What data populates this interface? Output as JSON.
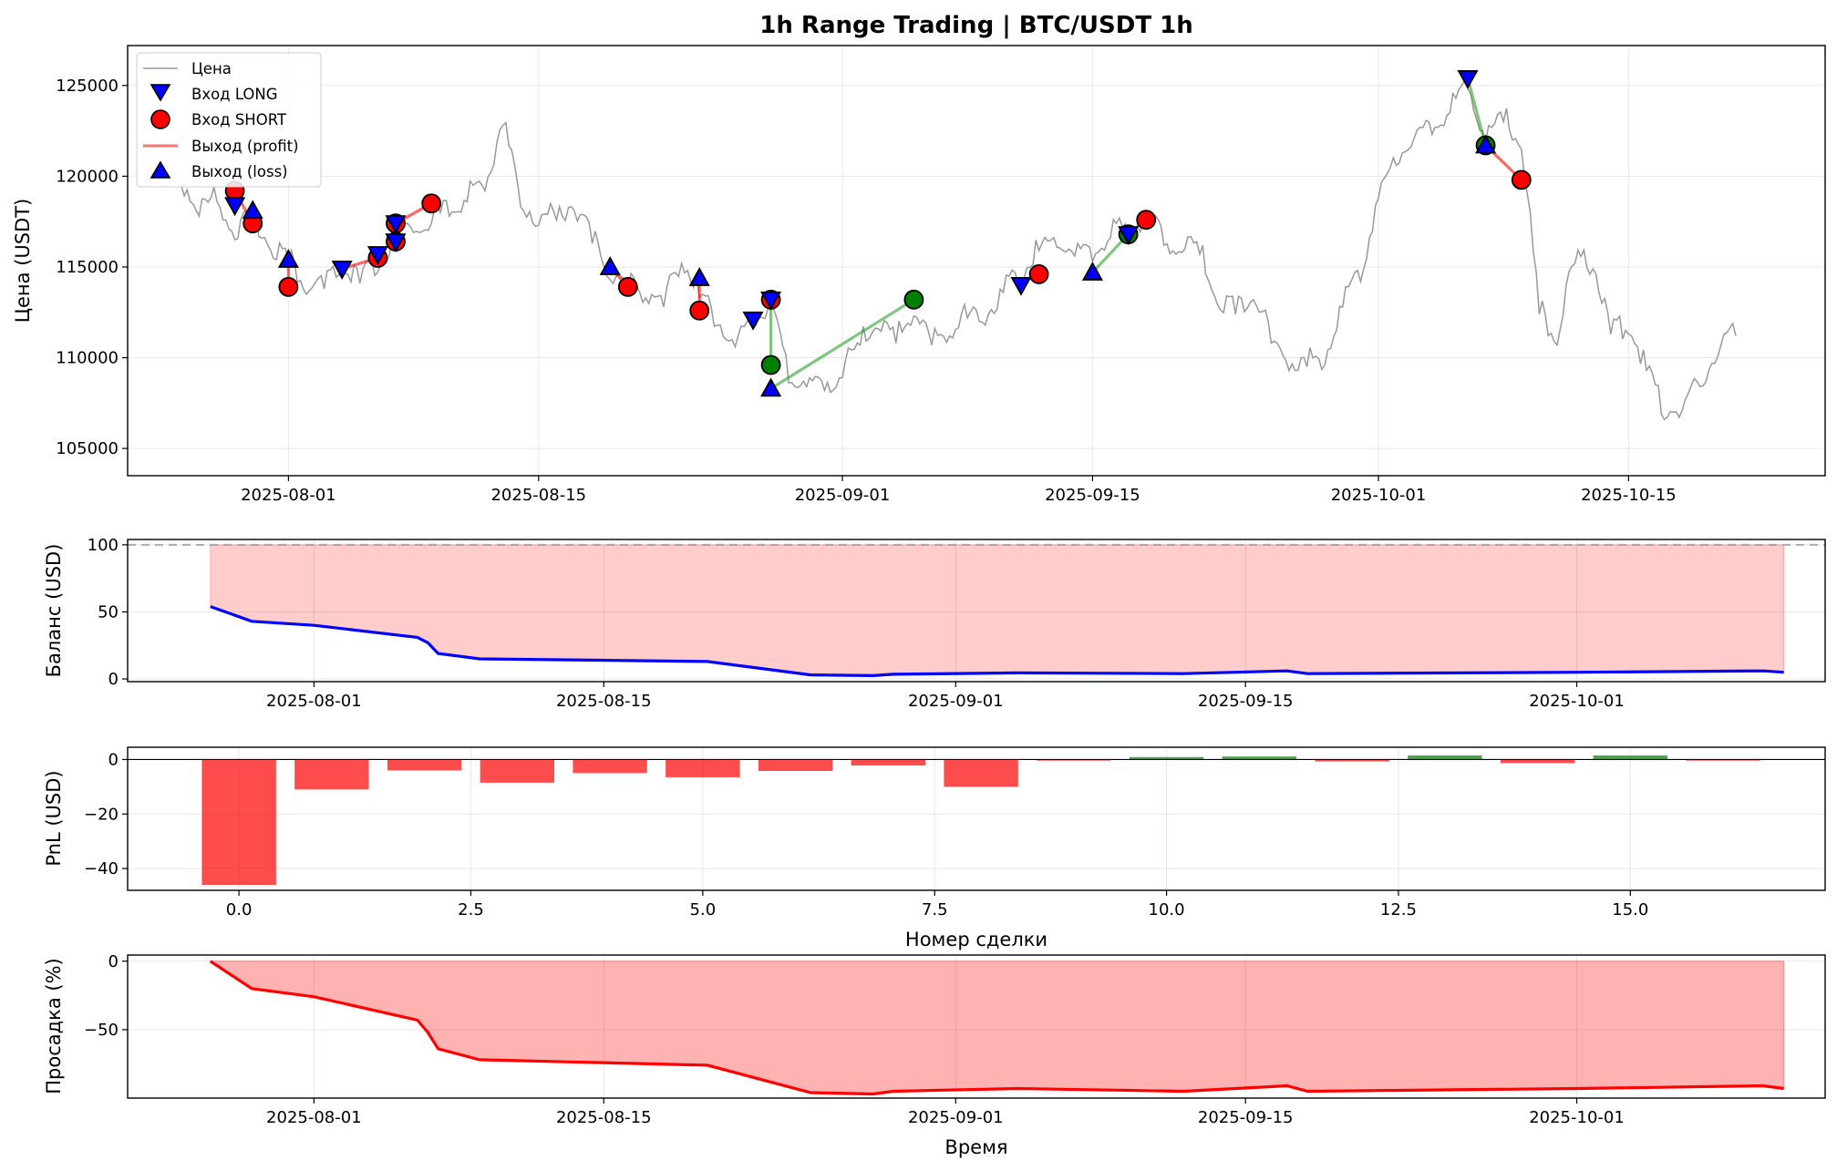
{
  "chart_data": [
    {
      "id": "price",
      "type": "line",
      "title": "1h Range Trading | BTC/USDT 1h",
      "xlabel": "",
      "ylabel": "Цена (USDT)",
      "xlim": [
        "2025-07-23",
        "2025-10-26"
      ],
      "ylim": [
        103500,
        127200
      ],
      "xticks": [
        "2025-08-01",
        "2025-08-15",
        "2025-09-01",
        "2025-09-15",
        "2025-10-01",
        "2025-10-15"
      ],
      "yticks": [
        105000,
        110000,
        115000,
        120000,
        125000
      ],
      "grid": true,
      "legend": {
        "placement": "top-left",
        "entries": [
          "Цена",
          "Вход LONG",
          "Вход SHORT",
          "Выход (profit)",
          "Выход (loss)"
        ]
      },
      "colors": {
        "price": "#999999",
        "long": "#0000ff",
        "short": "#ff0000",
        "profit_exit": "#008000",
        "loss_line": "#ff0000",
        "profit_line": "#2ca02c"
      },
      "price_series": {
        "name": "Цена",
        "x": [
          "2025-07-26",
          "2025-07-27",
          "2025-07-28",
          "2025-07-29",
          "2025-07-30",
          "2025-07-31",
          "2025-08-01",
          "2025-08-02",
          "2025-08-03",
          "2025-08-04",
          "2025-08-05",
          "2025-08-06",
          "2025-08-07",
          "2025-08-08",
          "2025-08-09",
          "2025-08-10",
          "2025-08-11",
          "2025-08-12",
          "2025-08-13",
          "2025-08-14",
          "2025-08-15",
          "2025-08-16",
          "2025-08-17",
          "2025-08-18",
          "2025-08-19",
          "2025-08-20",
          "2025-08-21",
          "2025-08-22",
          "2025-08-23",
          "2025-08-24",
          "2025-08-25",
          "2025-08-26",
          "2025-08-27",
          "2025-08-28",
          "2025-08-29",
          "2025-08-30",
          "2025-08-31",
          "2025-09-01",
          "2025-09-02",
          "2025-09-03",
          "2025-09-04",
          "2025-09-05",
          "2025-09-06",
          "2025-09-07",
          "2025-09-08",
          "2025-09-09",
          "2025-09-10",
          "2025-09-11",
          "2025-09-12",
          "2025-09-13",
          "2025-09-14",
          "2025-09-15",
          "2025-09-16",
          "2025-09-17",
          "2025-09-18",
          "2025-09-19",
          "2025-09-20",
          "2025-09-21",
          "2025-09-22",
          "2025-09-23",
          "2025-09-24",
          "2025-09-25",
          "2025-09-26",
          "2025-09-27",
          "2025-09-28",
          "2025-09-29",
          "2025-09-30",
          "2025-10-01",
          "2025-10-02",
          "2025-10-03",
          "2025-10-04",
          "2025-10-05",
          "2025-10-06",
          "2025-10-07",
          "2025-10-08",
          "2025-10-09",
          "2025-10-10",
          "2025-10-11",
          "2025-10-12",
          "2025-10-13",
          "2025-10-14",
          "2025-10-15",
          "2025-10-16",
          "2025-10-17",
          "2025-10-18",
          "2025-10-19",
          "2025-10-20",
          "2025-10-21"
        ],
        "y": [
          119500,
          117800,
          118600,
          116500,
          117600,
          115900,
          115300,
          113500,
          113800,
          114400,
          114100,
          114700,
          116200,
          116900,
          117400,
          117800,
          118600,
          119200,
          122800,
          118300,
          117300,
          117600,
          118100,
          116300,
          114300,
          113800,
          113300,
          112800,
          115200,
          113300,
          111800,
          110600,
          111600,
          112800,
          108600,
          108400,
          108200,
          108900,
          110700,
          111600,
          110800,
          112300,
          110700,
          111200,
          112200,
          111800,
          113600,
          114400,
          115900,
          116100,
          115600,
          115300,
          116600,
          116900,
          117400,
          116200,
          115800,
          115700,
          112900,
          112400,
          113200,
          110800,
          109300,
          109500,
          109600,
          112800,
          114200,
          118800,
          120600,
          122100,
          122300,
          123500,
          124800,
          121900,
          123000,
          121500,
          112400,
          110700,
          115200,
          114900,
          111300,
          111300,
          109300,
          106600,
          107100,
          108400,
          110100,
          111200
        ]
      },
      "long_entries": {
        "x": [
          "2025-07-29",
          "2025-08-04",
          "2025-08-06",
          "2025-08-07",
          "2025-08-07",
          "2025-08-27",
          "2025-08-28",
          "2025-09-11",
          "2025-09-17",
          "2025-10-06"
        ],
        "y": [
          118400,
          114900,
          115700,
          116400,
          117400,
          112100,
          113200,
          114000,
          116800,
          125400
        ]
      },
      "short_entries": {
        "x": [
          "2025-07-29",
          "2025-07-30",
          "2025-08-01",
          "2025-08-06",
          "2025-08-07",
          "2025-08-07",
          "2025-08-09",
          "2025-08-20",
          "2025-08-24",
          "2025-08-28"
        ],
        "y": [
          119200,
          117400,
          113900,
          115500,
          116400,
          117400,
          118500,
          113900,
          112600,
          113200
        ]
      },
      "profit_exits": {
        "x": [
          "2025-08-28",
          "2025-09-05",
          "2025-09-17",
          "2025-10-07"
        ],
        "y": [
          109600,
          113200,
          116800,
          121700
        ]
      },
      "loss_exits": {
        "x": [
          "2025-07-30",
          "2025-08-01",
          "2025-08-19",
          "2025-08-24",
          "2025-08-28",
          "2025-09-15",
          "2025-10-07"
        ],
        "y": [
          118100,
          115400,
          115000,
          114400,
          108300,
          114700,
          121700
        ]
      },
      "short_only_exits": {
        "x": [
          "2025-09-12",
          "2025-09-18",
          "2025-10-09"
        ],
        "y": [
          114600,
          117600,
          119800
        ]
      },
      "trade_lines": [
        {
          "x": [
            "2025-07-29",
            "2025-07-30"
          ],
          "y": [
            119200,
            117400
          ],
          "result": "loss"
        },
        {
          "x": [
            "2025-08-01",
            "2025-08-01"
          ],
          "y": [
            115400,
            113900
          ],
          "result": "loss"
        },
        {
          "x": [
            "2025-08-04",
            "2025-08-06"
          ],
          "y": [
            114900,
            115500
          ],
          "result": "loss"
        },
        {
          "x": [
            "2025-08-07",
            "2025-08-09"
          ],
          "y": [
            117400,
            118500
          ],
          "result": "loss"
        },
        {
          "x": [
            "2025-08-19",
            "2025-08-20"
          ],
          "y": [
            115000,
            113900
          ],
          "result": "loss"
        },
        {
          "x": [
            "2025-08-24",
            "2025-08-24"
          ],
          "y": [
            114400,
            112600
          ],
          "result": "loss"
        },
        {
          "x": [
            "2025-08-28",
            "2025-08-28"
          ],
          "y": [
            113200,
            109600
          ],
          "result": "profit"
        },
        {
          "x": [
            "2025-08-28",
            "2025-09-05"
          ],
          "y": [
            108300,
            113200
          ],
          "result": "profit"
        },
        {
          "x": [
            "2025-09-15",
            "2025-09-17"
          ],
          "y": [
            114700,
            116800
          ],
          "result": "profit"
        },
        {
          "x": [
            "2025-10-06",
            "2025-10-07"
          ],
          "y": [
            125400,
            121700
          ],
          "result": "profit"
        },
        {
          "x": [
            "2025-10-07",
            "2025-10-09"
          ],
          "y": [
            121700,
            119800
          ],
          "result": "loss"
        }
      ]
    },
    {
      "id": "balance",
      "type": "area",
      "ylabel": "Баланс (USD)",
      "xlabel": "",
      "xlim": [
        "2025-07-23",
        "2025-10-13"
      ],
      "ylim": [
        -2,
        104
      ],
      "xticks": [
        "2025-08-01",
        "2025-08-15",
        "2025-09-01",
        "2025-09-15",
        "2025-10-01"
      ],
      "yticks": [
        0,
        50,
        100
      ],
      "initial_balance": 100,
      "grid": true,
      "series": [
        {
          "x": [
            "2025-07-27",
            "2025-07-29",
            "2025-08-01",
            "2025-08-06",
            "2025-08-06 12:00",
            "2025-08-07",
            "2025-08-09",
            "2025-08-20",
            "2025-08-25",
            "2025-08-28",
            "2025-08-29",
            "2025-09-04",
            "2025-09-12",
            "2025-09-17",
            "2025-09-18",
            "2025-10-01",
            "2025-10-10",
            "2025-10-11"
          ],
          "values": [
            54,
            43,
            40,
            31,
            27,
            19,
            15,
            13,
            3,
            2.5,
            3.5,
            4.5,
            4,
            6,
            4,
            5,
            6,
            5
          ]
        }
      ],
      "colors": {
        "line": "#0000ff",
        "fill": "#ff0000",
        "baseline": "#999999"
      }
    },
    {
      "id": "pnl",
      "type": "bar",
      "xlabel": "Номер сделки",
      "ylabel": "PnL (USD)",
      "xlim": [
        -1.2,
        17.1
      ],
      "ylim": [
        -48,
        4.5
      ],
      "xticks": [
        0.0,
        2.5,
        5.0,
        7.5,
        10.0,
        12.5,
        15.0
      ],
      "yticks": [
        -40,
        -20,
        0
      ],
      "grid": true,
      "categories": [
        0,
        1,
        2,
        3,
        4,
        5,
        6,
        7,
        8,
        9,
        10,
        11,
        12,
        13,
        14,
        15,
        16
      ],
      "values": [
        -46,
        -11,
        -4,
        -8.5,
        -5,
        -6.5,
        -4.2,
        -2.2,
        -10,
        -0.4,
        0.9,
        1.1,
        -0.7,
        1.5,
        -1.3,
        1.5,
        -0.3
      ],
      "colors": {
        "positive": "#008000",
        "negative": "#ff0000"
      }
    },
    {
      "id": "drawdown",
      "type": "area",
      "xlabel": "Время",
      "ylabel": "Просадка (%)",
      "xlim": [
        "2025-07-23",
        "2025-10-13"
      ],
      "ylim": [
        -100,
        4.5
      ],
      "xticks": [
        "2025-08-01",
        "2025-08-15",
        "2025-09-01",
        "2025-09-15",
        "2025-10-01"
      ],
      "yticks": [
        -50,
        0
      ],
      "grid": true,
      "series": [
        {
          "x": [
            "2025-07-27",
            "2025-07-29",
            "2025-08-01",
            "2025-08-06",
            "2025-08-06 12:00",
            "2025-08-07",
            "2025-08-09",
            "2025-08-20",
            "2025-08-25",
            "2025-08-28",
            "2025-08-29",
            "2025-09-04",
            "2025-09-12",
            "2025-09-17",
            "2025-09-18",
            "2025-10-01",
            "2025-10-10",
            "2025-10-11"
          ],
          "values": [
            0,
            -20,
            -26,
            -43,
            -52,
            -64,
            -72,
            -76,
            -96,
            -97,
            -95,
            -93,
            -95,
            -91,
            -95,
            -93,
            -91,
            -93
          ]
        }
      ],
      "colors": {
        "line": "#ff0000",
        "fill": "#ff0000"
      }
    }
  ]
}
